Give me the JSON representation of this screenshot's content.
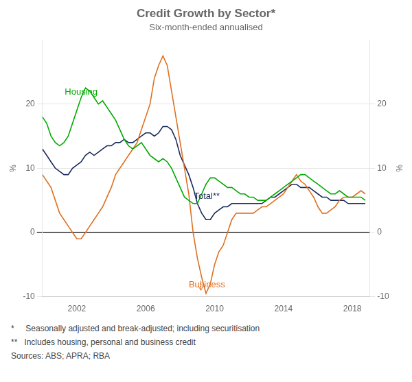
{
  "chart_data": {
    "type": "line",
    "title": "Credit Growth by Sector*",
    "subtitle": "Six-month-ended annualised",
    "ylabel": "%",
    "y2label": "%",
    "xlim": [
      2000.0,
      2019.0
    ],
    "xticks": [
      2002,
      2006,
      2010,
      2014,
      2018
    ],
    "ylim": [
      -10,
      30
    ],
    "yticks": [
      -10,
      0,
      10,
      20
    ],
    "y2lim": [
      -10,
      30
    ],
    "y2ticks": [
      -10,
      0,
      10,
      20
    ],
    "grid": "y",
    "x": [
      2000.0,
      2000.25,
      2000.5,
      2000.75,
      2001.0,
      2001.25,
      2001.5,
      2001.75,
      2002.0,
      2002.25,
      2002.5,
      2002.75,
      2003.0,
      2003.25,
      2003.5,
      2003.75,
      2004.0,
      2004.25,
      2004.5,
      2004.75,
      2005.0,
      2005.25,
      2005.5,
      2005.75,
      2006.0,
      2006.25,
      2006.5,
      2006.75,
      2007.0,
      2007.25,
      2007.5,
      2007.75,
      2008.0,
      2008.25,
      2008.5,
      2008.75,
      2009.0,
      2009.25,
      2009.5,
      2009.75,
      2010.0,
      2010.25,
      2010.5,
      2010.75,
      2011.0,
      2011.25,
      2011.5,
      2011.75,
      2012.0,
      2012.25,
      2012.5,
      2012.75,
      2013.0,
      2013.25,
      2013.5,
      2013.75,
      2014.0,
      2014.25,
      2014.5,
      2014.75,
      2015.0,
      2015.25,
      2015.5,
      2015.75,
      2016.0,
      2016.25,
      2016.5,
      2016.75,
      2017.0,
      2017.25,
      2017.5,
      2017.75,
      2018.0,
      2018.25,
      2018.5,
      2018.75
    ],
    "series": [
      {
        "color": "#00aa00",
        "values": [
          18.0,
          17.0,
          15.0,
          14.0,
          13.5,
          14.0,
          15.0,
          17.0,
          19.0,
          21.0,
          22.5,
          22.0,
          21.0,
          20.0,
          20.5,
          19.5,
          18.5,
          17.5,
          16.0,
          14.5,
          13.5,
          13.0,
          13.5,
          14.0,
          13.0,
          12.0,
          11.5,
          11.0,
          11.5,
          11.0,
          10.0,
          8.5,
          7.0,
          5.5,
          5.0,
          4.5,
          4.5,
          6.0,
          7.5,
          8.5,
          8.5,
          8.0,
          7.5,
          7.0,
          7.0,
          6.5,
          6.0,
          6.0,
          5.5,
          5.5,
          5.0,
          5.0,
          5.0,
          5.5,
          6.0,
          6.5,
          7.0,
          7.5,
          8.0,
          8.5,
          9.0,
          9.0,
          8.5,
          8.0,
          7.5,
          7.0,
          6.5,
          6.0,
          6.0,
          6.5,
          6.0,
          5.5,
          5.5,
          5.5,
          5.5,
          5.0
        ]
      },
      {
        "color": "#e07020",
        "values": [
          9.0,
          8.0,
          7.0,
          5.0,
          3.0,
          2.0,
          1.0,
          0.0,
          -1.0,
          -1.0,
          0.0,
          1.0,
          2.0,
          3.0,
          4.0,
          5.5,
          7.0,
          9.0,
          10.0,
          11.0,
          12.0,
          13.0,
          14.0,
          16.0,
          18.0,
          20.0,
          24.0,
          26.0,
          27.5,
          26.0,
          22.0,
          18.0,
          14.0,
          10.0,
          6.0,
          0.0,
          -4.0,
          -7.0,
          -9.5,
          -8.0,
          -5.0,
          -3.0,
          -2.0,
          0.0,
          2.0,
          3.0,
          3.0,
          3.0,
          3.0,
          3.0,
          3.5,
          4.0,
          4.0,
          4.5,
          5.0,
          5.5,
          6.0,
          7.0,
          8.0,
          9.0,
          8.0,
          7.5,
          6.5,
          5.5,
          4.0,
          3.0,
          3.0,
          3.5,
          4.0,
          5.0,
          5.5,
          5.5,
          5.5,
          6.0,
          6.5,
          6.0
        ]
      },
      {
        "color": "#1a2a5a",
        "values": [
          13.0,
          12.0,
          11.0,
          10.0,
          9.5,
          9.0,
          9.0,
          10.0,
          10.5,
          11.0,
          12.0,
          12.5,
          12.0,
          12.5,
          13.0,
          13.5,
          13.5,
          14.0,
          14.0,
          14.5,
          14.0,
          14.0,
          14.5,
          15.0,
          15.5,
          15.5,
          15.0,
          15.5,
          16.5,
          16.5,
          16.0,
          14.5,
          12.0,
          10.5,
          9.0,
          7.0,
          4.5,
          3.0,
          2.0,
          2.0,
          3.0,
          3.5,
          4.0,
          4.0,
          4.5,
          4.5,
          4.5,
          4.5,
          4.5,
          4.5,
          4.5,
          4.5,
          5.0,
          5.5,
          5.5,
          6.0,
          6.5,
          7.0,
          7.5,
          7.5,
          7.0,
          7.0,
          7.0,
          6.5,
          6.0,
          5.5,
          5.5,
          5.0,
          5.0,
          5.0,
          5.0,
          4.5,
          4.5,
          4.5,
          4.5,
          4.5
        ]
      }
    ],
    "annotations": [
      {
        "text": "Housing",
        "x": 2001.3,
        "y": 21.5,
        "color": "#00aa00"
      },
      {
        "text": "Business",
        "x": 2008.5,
        "y": -8.5,
        "color": "#e07020"
      },
      {
        "text": "Total**",
        "x": 2008.8,
        "y": 5.2,
        "color": "#1a2a5a"
      }
    ],
    "arrows": [
      {
        "x": 2009.2,
        "y_start": -7.5,
        "y_end": -9.0,
        "color": "#e07020"
      }
    ],
    "footnotes": [
      "*     Seasonally adjusted and break-adjusted; including securitisation",
      "**   Includes housing, personal and business credit",
      "Sources: ABS; APRA; RBA"
    ]
  }
}
